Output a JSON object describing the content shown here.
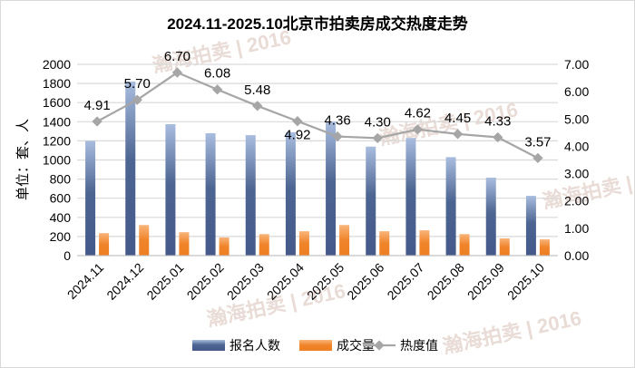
{
  "chart_data": {
    "type": "bar",
    "title": "2024.11-2025.10北京市拍卖房成交热度走势",
    "ylabel": "单位：套、人",
    "categories": [
      "2024.11",
      "2024.12",
      "2025.01",
      "2025.02",
      "2025.03",
      "2025.04",
      "2025.05",
      "2025.06",
      "2025.07",
      "2025.08",
      "2025.09",
      "2025.10"
    ],
    "ylim": [
      0,
      2000
    ],
    "yticks": [
      "0",
      "200",
      "400",
      "600",
      "800",
      "1000",
      "1200",
      "1400",
      "1600",
      "1800",
      "2000"
    ],
    "y2lim": [
      0,
      7
    ],
    "y2ticks": [
      "0.00",
      "1.00",
      "2.00",
      "3.00",
      "4.00",
      "5.00",
      "6.00",
      "7.00"
    ],
    "series": [
      {
        "name": "报名人数",
        "type": "bar",
        "color": "#4a6491",
        "values": [
          1200,
          1820,
          1375,
          1280,
          1260,
          1290,
          1400,
          1140,
          1230,
          1030,
          815,
          625
        ]
      },
      {
        "name": "成交量",
        "type": "bar",
        "color": "#f0842a",
        "values": [
          235,
          320,
          245,
          190,
          225,
          255,
          320,
          255,
          265,
          225,
          180,
          170
        ]
      },
      {
        "name": "热度值",
        "type": "line",
        "axis": "right",
        "color": "#a6a6a6",
        "values": [
          4.91,
          5.7,
          6.7,
          6.08,
          5.48,
          4.92,
          4.36,
          4.3,
          4.62,
          4.45,
          4.33,
          3.57
        ],
        "labels": [
          "4.91",
          "5.70",
          "6.70",
          "6.08",
          "5.48",
          "4.92",
          "4.36",
          "4.30",
          "4.62",
          "4.45",
          "4.33",
          "3.57"
        ]
      }
    ],
    "legend": "bottom",
    "grid": true,
    "watermark": "瀚海拍卖 Since 2016 www.fapai.cn"
  }
}
